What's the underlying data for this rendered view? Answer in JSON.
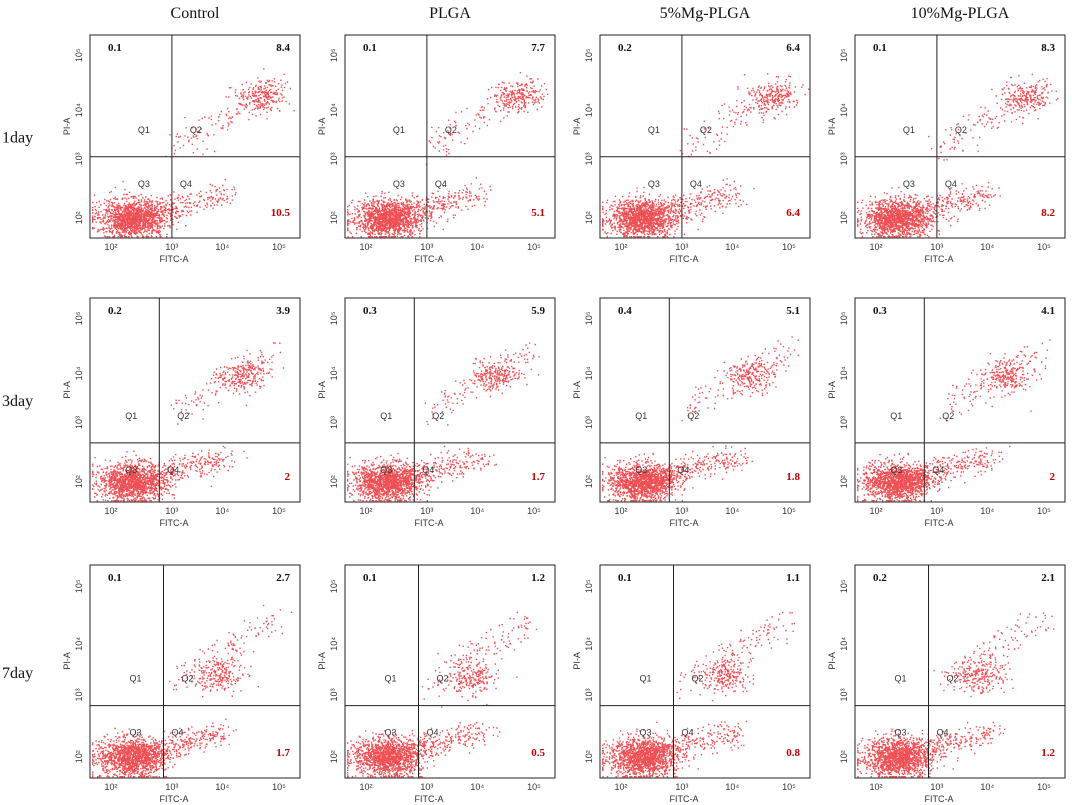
{
  "columns": [
    "Control",
    "PLGA",
    "5%Mg-PLGA",
    "10%Mg-PLGA"
  ],
  "rows": [
    "1day",
    "3day",
    "7day"
  ],
  "x_axis_label": "FITC-A",
  "y_axis_label": "PI-A",
  "axis_ticks": [
    "10²",
    "10³",
    "10⁴",
    "10⁵"
  ],
  "quadrant_labels": [
    "Q1",
    "Q2",
    "Q3",
    "Q4"
  ],
  "panels": [
    [
      {
        "q1": 0.1,
        "q2": 8.4,
        "q4": 10.5
      },
      {
        "q1": 0.1,
        "q2": 7.7,
        "q4": 5.1
      },
      {
        "q1": 0.2,
        "q2": 6.4,
        "q4": 6.4
      },
      {
        "q1": 0.1,
        "q2": 8.3,
        "q4": 8.2
      }
    ],
    [
      {
        "q1": 0.2,
        "q2": 3.9,
        "q4": 2
      },
      {
        "q1": 0.3,
        "q2": 5.9,
        "q4": 1.7
      },
      {
        "q1": 0.4,
        "q2": 5.1,
        "q4": 1.8
      },
      {
        "q1": 0.3,
        "q2": 4.1,
        "q4": 2
      }
    ],
    [
      {
        "q1": 0.1,
        "q2": 2.7,
        "q4": 1.7
      },
      {
        "q1": 0.1,
        "q2": 1.2,
        "q4": 0.5
      },
      {
        "q1": 0.1,
        "q2": 1.1,
        "q4": 0.8
      },
      {
        "q1": 0.2,
        "q2": 2.1,
        "q4": 1.2
      }
    ]
  ]
}
